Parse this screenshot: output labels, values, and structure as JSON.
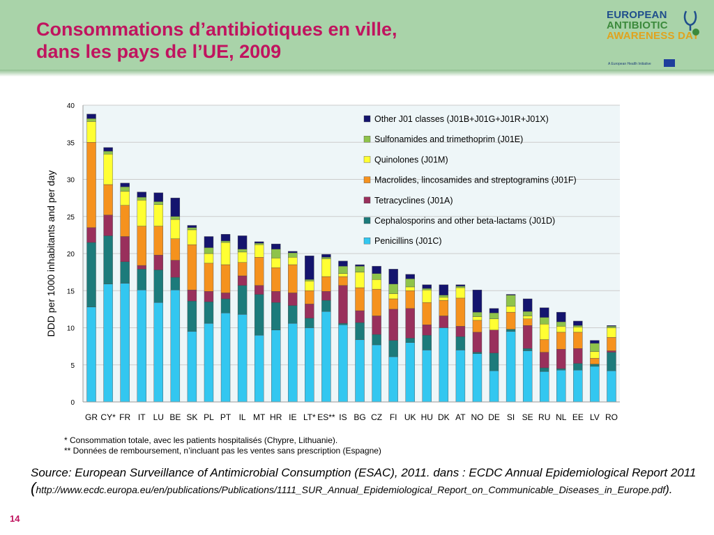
{
  "header": {
    "title_line1": "Consommations d’antibiotiques en ville,",
    "title_line2": "dans les pays de l’UE, 2009",
    "logo_line1": "EUROPEAN",
    "logo_line2": "ANTIBIOTIC",
    "logo_line3": "AWARENESS DAY",
    "logo_tagline": "A European Health Initiative"
  },
  "colors": {
    "header_bg": "#a9d3a9",
    "title": "#c0145f",
    "plot_bg": "#eef6f8",
    "series": [
      "#33c7f0",
      "#1c7b7b",
      "#99305c",
      "#f5921e",
      "#ffff33",
      "#8fc34a",
      "#14146e"
    ]
  },
  "chart_data": {
    "type": "bar",
    "stacked": true,
    "ylabel": "DDD per 1000 inhabitants and per day",
    "ylim": [
      0,
      40
    ],
    "yticks": [
      "0",
      "5",
      "10",
      "15",
      "20",
      "25",
      "30",
      "35",
      "40"
    ],
    "grid": true,
    "legend_position": "top-right",
    "categories": [
      "GR",
      "CY*",
      "FR",
      "IT",
      "LU",
      "BE",
      "SK",
      "PL",
      "PT",
      "IL",
      "MT",
      "HR",
      "IE",
      "LT*",
      "ES**",
      "IS",
      "BG",
      "CZ",
      "FI",
      "UK",
      "HU",
      "DK",
      "AT",
      "NO",
      "DE",
      "SI",
      "SE",
      "RU",
      "NL",
      "EE",
      "LV",
      "RO"
    ],
    "series": [
      {
        "name": "Penicillins (J01C)",
        "values": [
          12.8,
          15.9,
          16.0,
          15.1,
          13.4,
          15.1,
          9.5,
          10.6,
          12.0,
          11.8,
          9.0,
          9.7,
          10.6,
          10.0,
          12.2,
          10.4,
          8.4,
          7.7,
          6.1,
          8.0,
          7.0,
          10.0,
          7.0,
          6.5,
          4.2,
          9.5,
          6.9,
          4.1,
          4.3,
          4.3,
          4.8,
          4.2
        ]
      },
      {
        "name": "Cephalosporins and other beta-lactams (J01D)",
        "values": [
          8.7,
          6.5,
          2.9,
          2.8,
          4.4,
          1.7,
          4.1,
          2.9,
          1.9,
          3.9,
          5.5,
          3.7,
          2.4,
          1.3,
          1.5,
          0.2,
          2.3,
          1.4,
          2.2,
          0.6,
          2.0,
          0.0,
          1.8,
          0.2,
          2.4,
          0.3,
          0.3,
          0.5,
          0.2,
          0.9,
          0.3,
          2.5
        ]
      },
      {
        "name": "Tetracyclines (J01A)",
        "values": [
          2.0,
          2.8,
          3.4,
          0.5,
          2.0,
          2.3,
          1.5,
          1.4,
          0.8,
          1.3,
          1.2,
          1.5,
          1.7,
          1.9,
          1.2,
          5.1,
          1.6,
          2.5,
          4.2,
          4.0,
          1.4,
          1.6,
          1.4,
          2.7,
          3.1,
          0.0,
          3.1,
          2.1,
          2.6,
          2.0,
          0.0,
          0.2
        ]
      },
      {
        "name": "Macrolides, lincosamides and streptogramins (J01F)",
        "values": [
          11.5,
          4.1,
          4.2,
          5.3,
          3.9,
          2.9,
          6.1,
          3.8,
          3.8,
          1.8,
          3.8,
          3.2,
          3.8,
          1.8,
          2.0,
          1.2,
          3.1,
          3.6,
          1.4,
          2.4,
          3.0,
          2.1,
          3.8,
          1.6,
          0.0,
          2.3,
          0.9,
          1.7,
          2.3,
          2.2,
          0.8,
          1.8
        ]
      },
      {
        "name": "Quinolones (J01M)",
        "values": [
          2.8,
          4.1,
          1.9,
          3.5,
          2.9,
          2.6,
          2.0,
          1.3,
          3.0,
          1.4,
          1.7,
          1.3,
          1.0,
          1.3,
          2.4,
          0.4,
          2.1,
          1.3,
          0.7,
          0.5,
          1.7,
          0.4,
          1.4,
          0.5,
          1.5,
          0.8,
          0.4,
          2.1,
          0.8,
          0.7,
          0.9,
          1.3
        ]
      },
      {
        "name": "Sulfonamides and trimethoprim (J01E)",
        "values": [
          0.4,
          0.4,
          0.6,
          0.4,
          0.4,
          0.4,
          0.3,
          0.8,
          0.2,
          0.4,
          0.2,
          1.2,
          0.6,
          0.2,
          0.2,
          1.0,
          0.8,
          0.8,
          1.3,
          1.1,
          0.2,
          0.3,
          0.2,
          0.6,
          0.8,
          1.5,
          0.6,
          0.9,
          0.6,
          0.2,
          1.1,
          0.2
        ]
      },
      {
        "name": "Other J01 classes (J01B+J01G+J01R+J01X)",
        "values": [
          0.6,
          0.5,
          0.5,
          0.7,
          1.2,
          2.5,
          0.3,
          1.5,
          0.9,
          1.8,
          0.2,
          0.7,
          0.2,
          3.2,
          0.4,
          0.7,
          0.2,
          1.0,
          2.0,
          0.6,
          0.5,
          1.4,
          0.2,
          3.0,
          0.6,
          0.1,
          1.7,
          1.3,
          1.3,
          0.6,
          0.4,
          0.1
        ]
      }
    ]
  },
  "notes": {
    "note1": "* Consommation totale, avec les patients hospitalisés (Chypre, Lithuanie).",
    "note2": "** Données de remboursement, n’incluant pas les ventes sans prescription (Espagne)"
  },
  "source": {
    "text": "Source: European Surveillance of Antimicrobial Consumption (ESAC), 2011. dans : ECDC Annual Epidemiological Report 2011",
    "paren_open": "(",
    "url": "http://www.ecdc.europa.eu/en/publications/Publications/1111_SUR_Annual_Epidemiological_Report_on_Communicable_Diseases_in_Europe.pdf",
    "paren_close": ")."
  },
  "page_number": "14"
}
